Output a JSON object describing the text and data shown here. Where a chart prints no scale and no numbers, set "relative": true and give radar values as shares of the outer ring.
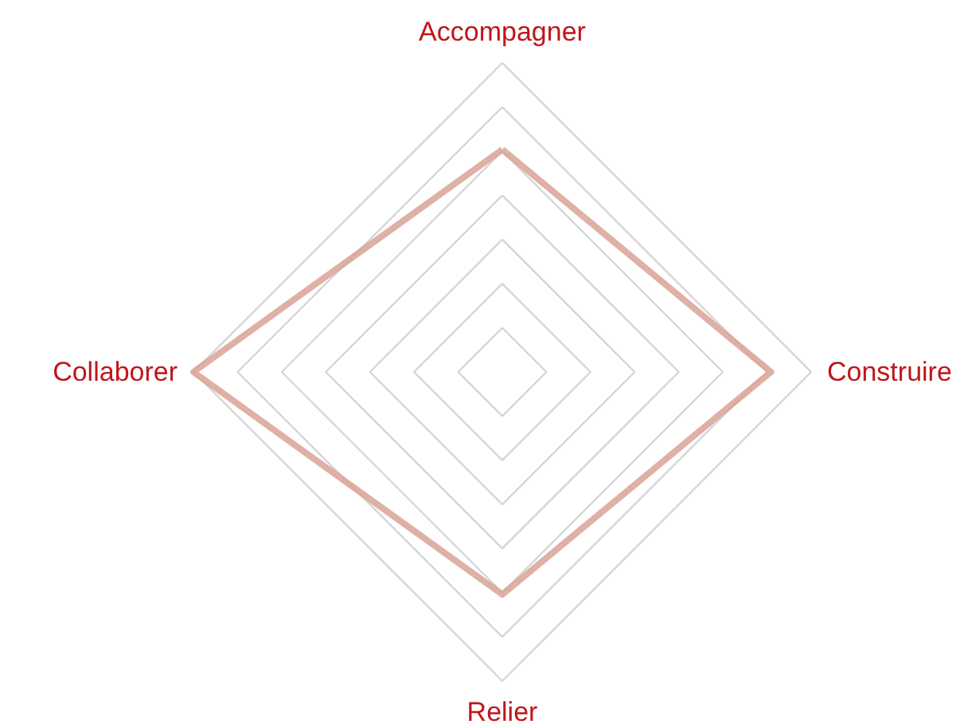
{
  "chart_data": {
    "type": "radar",
    "relative": true,
    "categories": [
      "Accompagner",
      "Construire",
      "Relier",
      "Collaborer"
    ],
    "series": [
      {
        "color": "#d9a295",
        "values": [
          0.72,
          0.87,
          0.72,
          1.0
        ]
      }
    ]
  }
}
